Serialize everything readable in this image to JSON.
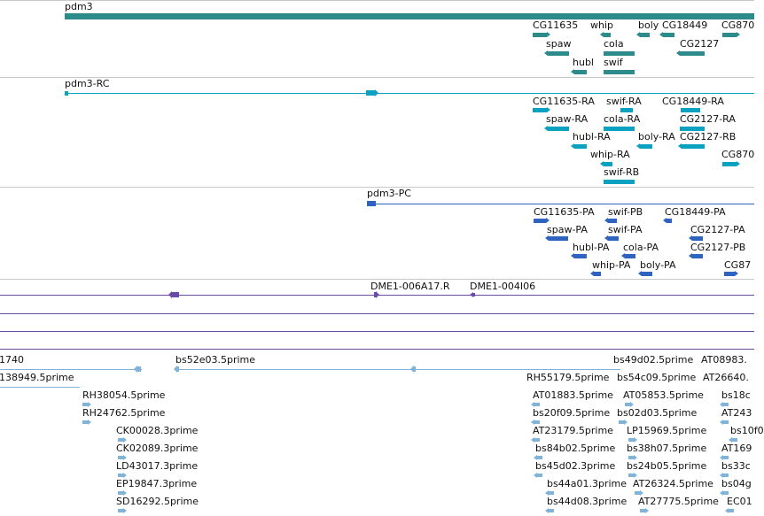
{
  "colors": {
    "gene": "#2e8b8b",
    "transcript": "#0aa2c0",
    "protein": "#2f63c0",
    "clone": "#6a4ca8",
    "est": "#7fb3d9",
    "separator": "#c8c8c8"
  },
  "tracks": {
    "genes": {
      "labels": [
        "pdm3",
        "CG11635",
        "whip",
        "boly",
        "CG18449",
        "CG870",
        "spaw",
        "cola",
        "CG2127",
        "hubl",
        "swif"
      ]
    },
    "transcripts": {
      "labels": [
        "pdm3-RC",
        "CG11635-RA",
        "swif-RA",
        "CG18449-RA",
        "spaw-RA",
        "cola-RA",
        "CG2127-RA",
        "hubl-RA",
        "boly-RA",
        "CG2127-RB",
        "whip-RA",
        "CG870",
        "swif-RB"
      ]
    },
    "proteins": {
      "labels": [
        "pdm3-PC",
        "CG11635-PA",
        "swif-PB",
        "CG18449-PA",
        "spaw-PA",
        "swif-PA",
        "CG2127-PA",
        "hubl-PA",
        "cola-PA",
        "CG2127-PB",
        "whip-PA",
        "boly-PA",
        "CG87"
      ]
    },
    "clones": {
      "labels": [
        "DME1-006A17.R",
        "DME1-004I06"
      ]
    },
    "ests": {
      "labels": [
        "1740",
        "bs52e03.5prime",
        "bs49d02.5prime",
        "AT08983.",
        "138949.5prime",
        "RH55179.5prime",
        "bs54c09.5prime",
        "AT26640.",
        "RH38054.5prime",
        "AT01883.5prime",
        "AT05853.5prime",
        "bs18c",
        "RH24762.5prime",
        "bs20f09.5prime",
        "bs02d03.5prime",
        "AT243",
        "CK00028.3prime",
        "AT23179.5prime",
        "LP15969.5prime",
        "bs10f0",
        "CK02089.3prime",
        "bs84b02.5prime",
        "bs38h07.5prime",
        "AT169",
        "LD43017.3prime",
        "bs45d02.3prime",
        "bs24b05.5prime",
        "bs33c",
        "EP19847.3prime",
        "bs44a01.3prime",
        "AT26324.5prime",
        "bs04g",
        "SD16292.5prime",
        "bs44d08.3prime",
        "AT27775.5prime",
        "EC01"
      ]
    }
  }
}
